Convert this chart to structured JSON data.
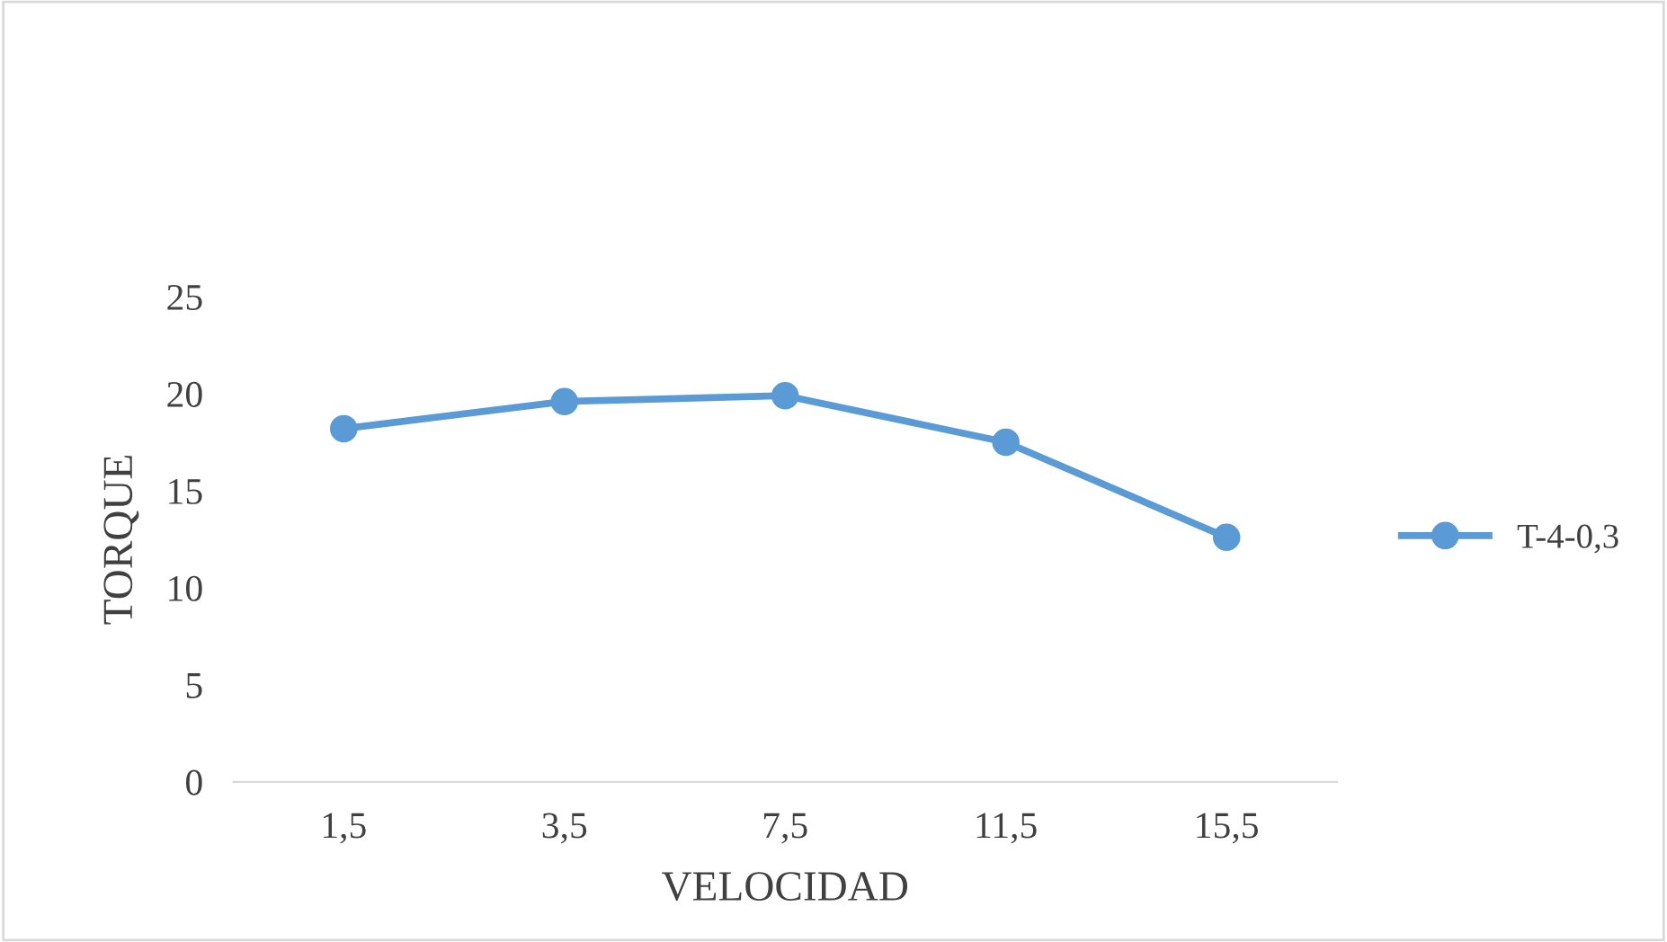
{
  "chart_data": {
    "type": "line",
    "xlabel": "VELOCIDAD",
    "ylabel": "TORQUE",
    "categories": [
      "1,5",
      "3,5",
      "7,5",
      "11,5",
      "15,5"
    ],
    "series": [
      {
        "name": "T-4-0,3",
        "color": "#5b9bd5",
        "values": [
          18.2,
          19.6,
          19.9,
          17.5,
          12.6
        ]
      }
    ],
    "ylim": [
      0,
      25
    ],
    "yticks": [
      0,
      5,
      10,
      15,
      20,
      25
    ],
    "grid": false,
    "legend": "right",
    "marker": "circle",
    "line_style": "solid"
  }
}
